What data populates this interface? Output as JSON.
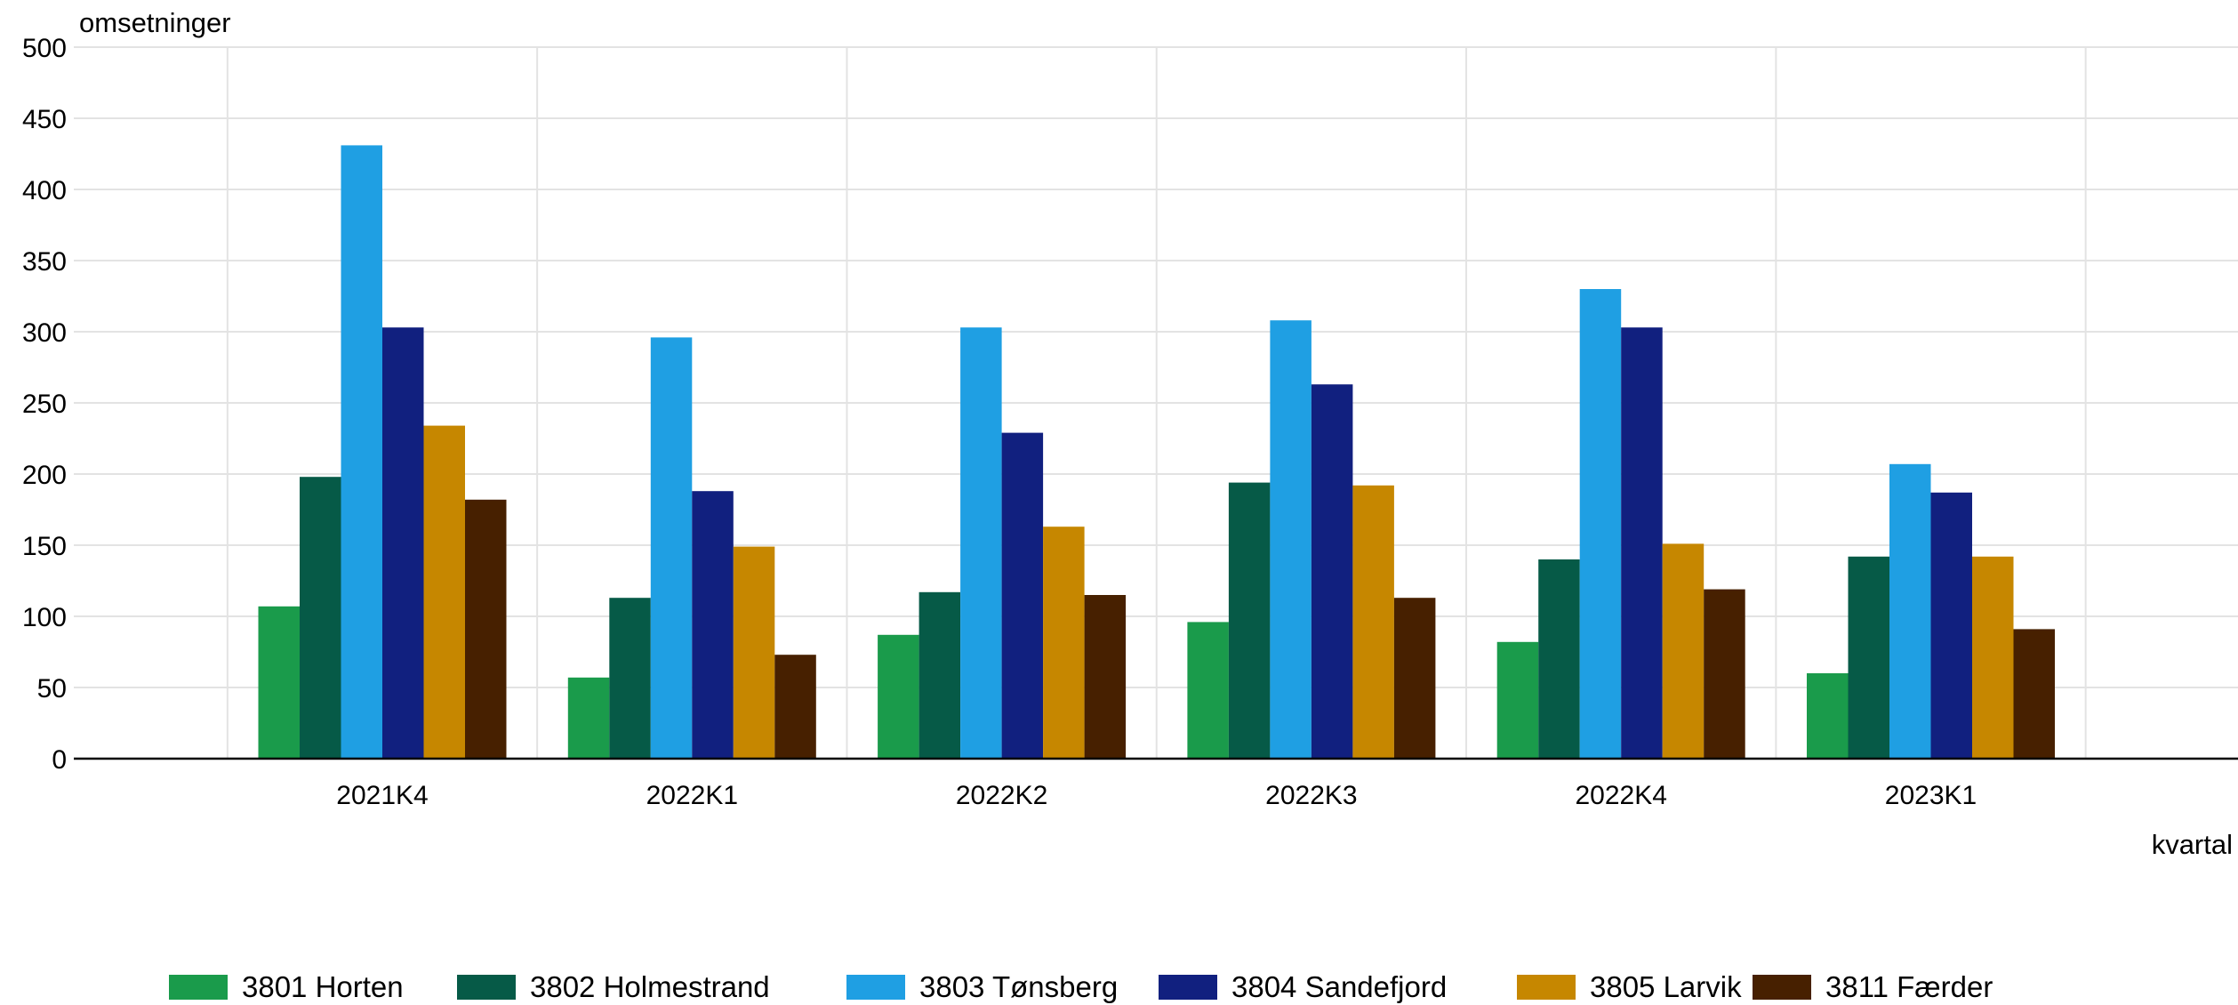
{
  "chart_data": {
    "type": "bar",
    "ylabel": "omsetninger",
    "xlabel": "kvartal",
    "categories": [
      "2021K4",
      "2022K1",
      "2022K2",
      "2022K3",
      "2022K4",
      "2023K1"
    ],
    "ylim": [
      0,
      500
    ],
    "yticks": [
      0,
      50,
      100,
      150,
      200,
      250,
      300,
      350,
      400,
      450,
      500
    ],
    "grid": true,
    "legend_position": "bottom",
    "series": [
      {
        "name": "3801 Horten",
        "color": "#1a9b4b",
        "values": [
          107,
          57,
          87,
          96,
          82,
          60
        ]
      },
      {
        "name": "3802 Holmestrand",
        "color": "#065a47",
        "values": [
          198,
          113,
          117,
          194,
          140,
          142
        ]
      },
      {
        "name": "3803 Tønsberg",
        "color": "#1f9fe3",
        "values": [
          431,
          296,
          303,
          308,
          330,
          207
        ]
      },
      {
        "name": "3804 Sandefjord",
        "color": "#11207f",
        "values": [
          303,
          188,
          229,
          263,
          303,
          187
        ]
      },
      {
        "name": "3805 Larvik",
        "color": "#c68700",
        "values": [
          234,
          149,
          163,
          192,
          151,
          142
        ]
      },
      {
        "name": "3811 Færder",
        "color": "#472000",
        "values": [
          182,
          73,
          115,
          113,
          119,
          91
        ]
      }
    ]
  }
}
